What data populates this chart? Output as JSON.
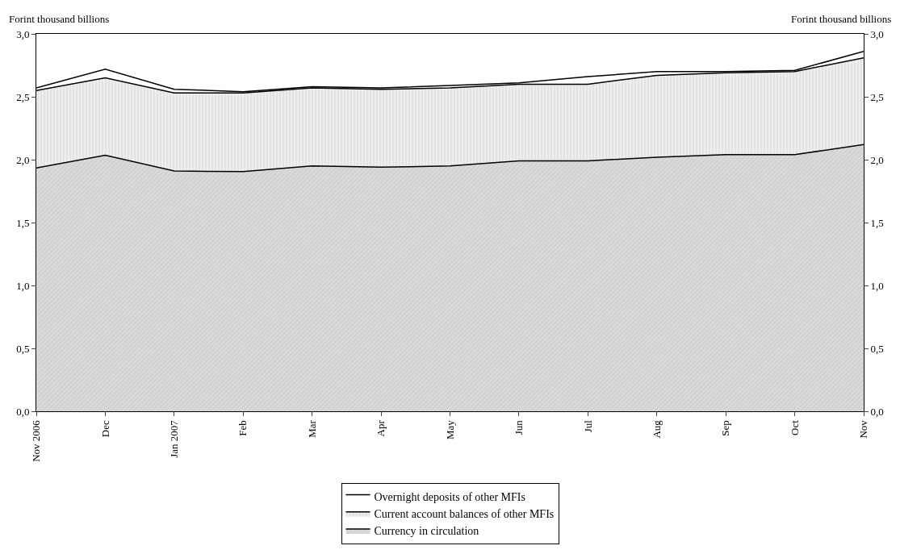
{
  "chart_data": {
    "type": "area",
    "stacked": true,
    "ylabel": "Forint thousand billions",
    "y2label": "Forint thousand billions",
    "categories": [
      "Nov 2006",
      "Dec",
      "Jan 2007",
      "Feb",
      "Mar",
      "Apr",
      "May",
      "Jun",
      "Jul",
      "Aug",
      "Sep",
      "Oct",
      "Nov"
    ],
    "series": [
      {
        "name": "Currency in circulation",
        "color": "#d9d9d9",
        "values": [
          1.935,
          2.035,
          1.91,
          1.905,
          1.95,
          1.94,
          1.95,
          1.99,
          1.99,
          2.02,
          2.04,
          2.04,
          2.12
        ]
      },
      {
        "name": "Current account balances of other MFIs",
        "color": "#efefef",
        "values": [
          0.615,
          0.615,
          0.62,
          0.625,
          0.62,
          0.62,
          0.62,
          0.61,
          0.61,
          0.65,
          0.65,
          0.66,
          0.69
        ]
      },
      {
        "name": "Overnight deposits of other MFIs",
        "color": "#ffffff",
        "values": [
          0.02,
          0.07,
          0.03,
          0.01,
          0.01,
          0.01,
          0.02,
          0.01,
          0.06,
          0.03,
          0.01,
          0.01,
          0.05
        ]
      }
    ],
    "ylim": [
      0,
      3
    ],
    "yticks": [
      {
        "value": 0,
        "label": "0,0"
      },
      {
        "value": 0.5,
        "label": "0,5"
      },
      {
        "value": 1,
        "label": "1,0"
      },
      {
        "value": 1.5,
        "label": "1,5"
      },
      {
        "value": 2,
        "label": "2,0"
      },
      {
        "value": 2.5,
        "label": "2,5"
      },
      {
        "value": 3,
        "label": "3,0"
      }
    ],
    "y2lim": [
      0,
      3
    ],
    "y2ticks": [
      {
        "value": 0,
        "label": "0,0"
      },
      {
        "value": 0.5,
        "label": "0,5"
      },
      {
        "value": 1,
        "label": "1,0"
      },
      {
        "value": 1.5,
        "label": "1,5"
      },
      {
        "value": 2,
        "label": "2,0"
      },
      {
        "value": 2.5,
        "label": "2,5"
      },
      {
        "value": 3,
        "label": "3,0"
      }
    ],
    "legend": "bottom",
    "marker": "none"
  }
}
